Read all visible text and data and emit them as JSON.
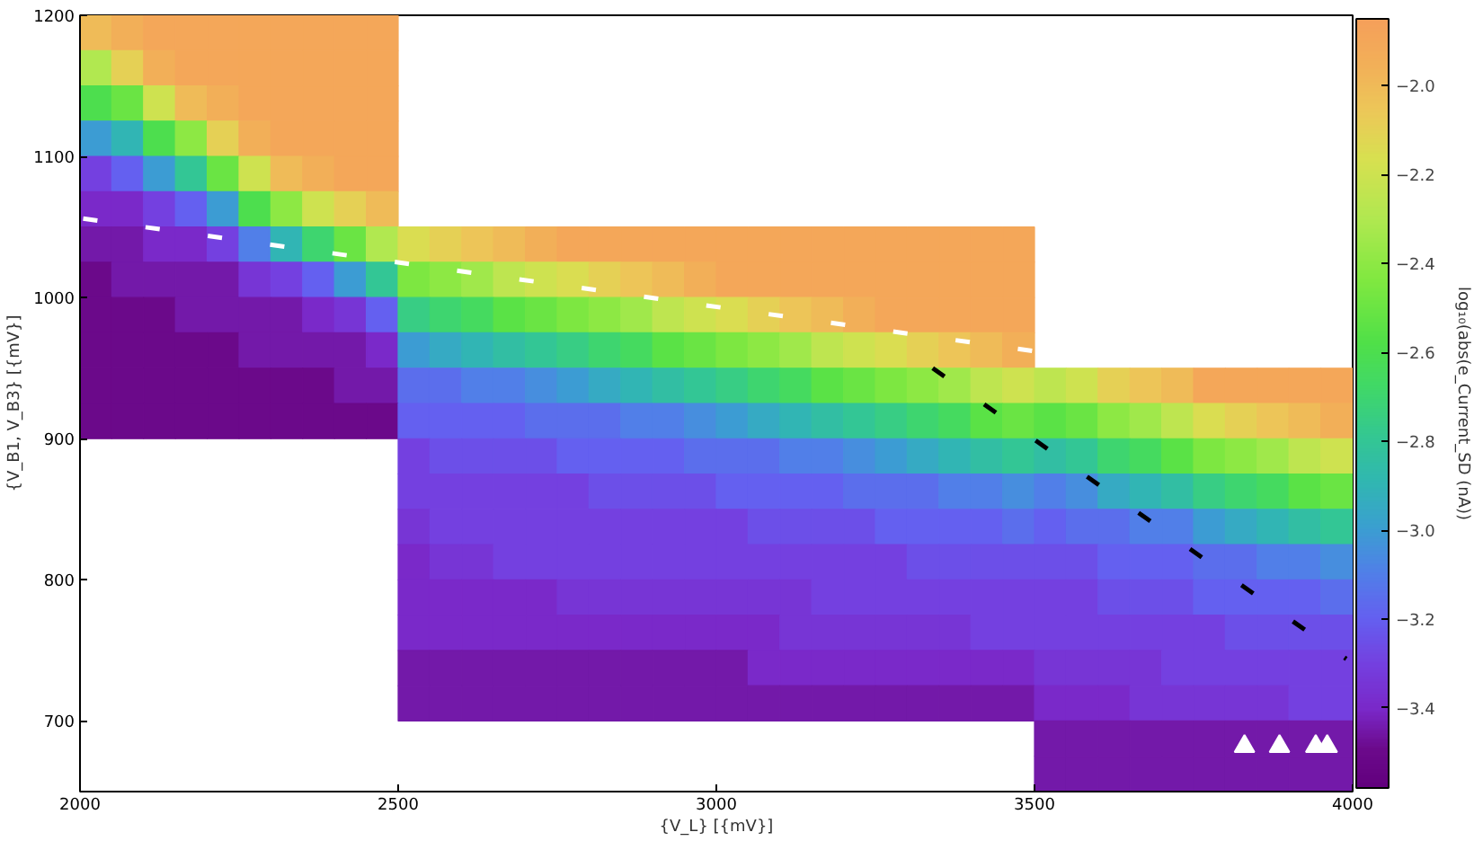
{
  "chart_data": {
    "type": "heatmap",
    "xlabel": "{V_L} [{mV}]",
    "ylabel": "{V_B1, V_B3} [{mV}]",
    "clabel": "log₁₀(abs(e_Current_SD (nA))",
    "xlim": [
      2000,
      4000
    ],
    "ylim": [
      650,
      1200
    ],
    "xticks": [
      2000,
      2500,
      3000,
      3500,
      4000
    ],
    "yticks": [
      700,
      800,
      900,
      1000,
      1100,
      1200
    ],
    "clim": [
      -3.58,
      -1.85
    ],
    "cticks": [
      {
        "value": -3.4,
        "label": "−3.4"
      },
      {
        "value": -3.2,
        "label": "−3.2"
      },
      {
        "value": -3.0,
        "label": "−3.0"
      },
      {
        "value": -2.8,
        "label": "−2.8"
      },
      {
        "value": -2.6,
        "label": "−2.6"
      },
      {
        "value": -2.4,
        "label": "−2.4"
      },
      {
        "value": -2.2,
        "label": "−2.2"
      },
      {
        "value": -2.0,
        "label": "−2.0"
      }
    ],
    "cells": [
      [
        -2.0,
        -1.95,
        -1.9,
        -1.9,
        -1.9,
        -1.9,
        -1.9,
        -1.9,
        -1.9,
        -1.9,
        null,
        null,
        null,
        null,
        null,
        null,
        null,
        null,
        null,
        null,
        null,
        null,
        null,
        null,
        null,
        null,
        null,
        null,
        null,
        null,
        null,
        null,
        null,
        null,
        null,
        null,
        null,
        null,
        null,
        null
      ],
      [
        -2.3,
        -2.1,
        -1.95,
        -1.9,
        -1.9,
        -1.9,
        -1.9,
        -1.9,
        -1.9,
        -1.9,
        null,
        null,
        null,
        null,
        null,
        null,
        null,
        null,
        null,
        null,
        null,
        null,
        null,
        null,
        null,
        null,
        null,
        null,
        null,
        null,
        null,
        null,
        null,
        null,
        null,
        null,
        null,
        null,
        null,
        null
      ],
      [
        -2.6,
        -2.5,
        -2.2,
        -2.0,
        -1.95,
        -1.9,
        -1.9,
        -1.9,
        -1.9,
        -1.9,
        null,
        null,
        null,
        null,
        null,
        null,
        null,
        null,
        null,
        null,
        null,
        null,
        null,
        null,
        null,
        null,
        null,
        null,
        null,
        null,
        null,
        null,
        null,
        null,
        null,
        null,
        null,
        null,
        null,
        null
      ],
      [
        -3.0,
        -2.9,
        -2.6,
        -2.4,
        -2.1,
        -1.95,
        -1.9,
        -1.9,
        -1.9,
        -1.9,
        null,
        null,
        null,
        null,
        null,
        null,
        null,
        null,
        null,
        null,
        null,
        null,
        null,
        null,
        null,
        null,
        null,
        null,
        null,
        null,
        null,
        null,
        null,
        null,
        null,
        null,
        null,
        null,
        null,
        null
      ],
      [
        -3.3,
        -3.2,
        -3.0,
        -2.8,
        -2.5,
        -2.2,
        -2.0,
        -1.95,
        -1.9,
        -1.9,
        null,
        null,
        null,
        null,
        null,
        null,
        null,
        null,
        null,
        null,
        null,
        null,
        null,
        null,
        null,
        null,
        null,
        null,
        null,
        null,
        null,
        null,
        null,
        null,
        null,
        null,
        null,
        null,
        null,
        null
      ],
      [
        -3.4,
        -3.4,
        -3.3,
        -3.2,
        -3.0,
        -2.6,
        -2.4,
        -2.2,
        -2.1,
        -2.0,
        null,
        null,
        null,
        null,
        null,
        null,
        null,
        null,
        null,
        null,
        null,
        null,
        null,
        null,
        null,
        null,
        null,
        null,
        null,
        null,
        null,
        null,
        null,
        null,
        null,
        null,
        null,
        null,
        null,
        null
      ],
      [
        -3.45,
        -3.45,
        -3.4,
        -3.4,
        -3.3,
        -3.1,
        -2.9,
        -2.7,
        -2.5,
        -2.3,
        -2.15,
        -2.1,
        -2.05,
        -2.0,
        -1.95,
        -1.9,
        -1.9,
        -1.9,
        -1.9,
        -1.9,
        -1.9,
        -1.9,
        -1.9,
        -1.9,
        -1.9,
        -1.9,
        -1.9,
        -1.9,
        -1.9,
        -1.9,
        null,
        null,
        null,
        null,
        null,
        null,
        null,
        null,
        null,
        null
      ],
      [
        -3.5,
        -3.45,
        -3.45,
        -3.45,
        -3.45,
        -3.35,
        -3.3,
        -3.2,
        -3.0,
        -2.8,
        -2.45,
        -2.4,
        -2.35,
        -2.25,
        -2.2,
        -2.15,
        -2.1,
        -2.05,
        -2.0,
        -1.95,
        -1.9,
        -1.9,
        -1.9,
        -1.9,
        -1.9,
        -1.9,
        -1.9,
        -1.9,
        -1.9,
        -1.9,
        null,
        null,
        null,
        null,
        null,
        null,
        null,
        null,
        null,
        null
      ],
      [
        -3.5,
        -3.5,
        -3.5,
        -3.45,
        -3.45,
        -3.45,
        -3.45,
        -3.4,
        -3.35,
        -3.2,
        -2.75,
        -2.7,
        -2.65,
        -2.55,
        -2.5,
        -2.45,
        -2.4,
        -2.35,
        -2.25,
        -2.2,
        -2.15,
        -2.1,
        -2.05,
        -2.0,
        -1.95,
        -1.9,
        -1.9,
        -1.9,
        -1.9,
        -1.9,
        null,
        null,
        null,
        null,
        null,
        null,
        null,
        null,
        null,
        null
      ],
      [
        -3.5,
        -3.5,
        -3.5,
        -3.5,
        -3.5,
        -3.45,
        -3.45,
        -3.45,
        -3.45,
        -3.4,
        -3.0,
        -2.95,
        -2.9,
        -2.85,
        -2.8,
        -2.75,
        -2.7,
        -2.65,
        -2.55,
        -2.5,
        -2.45,
        -2.4,
        -2.35,
        -2.25,
        -2.2,
        -2.15,
        -2.1,
        -2.05,
        -2.0,
        -1.95,
        null,
        null,
        null,
        null,
        null,
        null,
        null,
        null,
        null,
        null
      ],
      [
        -3.5,
        -3.5,
        -3.5,
        -3.5,
        -3.5,
        -3.5,
        -3.5,
        -3.5,
        -3.45,
        -3.45,
        -3.15,
        -3.15,
        -3.1,
        -3.1,
        -3.05,
        -3.0,
        -2.95,
        -2.9,
        -2.85,
        -2.8,
        -2.75,
        -2.7,
        -2.65,
        -2.55,
        -2.5,
        -2.45,
        -2.4,
        -2.35,
        -2.25,
        -2.2,
        -2.25,
        -2.2,
        -2.1,
        -2.05,
        -2.0,
        -1.9,
        -1.9,
        -1.9,
        -1.9,
        -1.9
      ],
      [
        -3.5,
        -3.5,
        -3.5,
        -3.5,
        -3.5,
        -3.5,
        -3.5,
        -3.5,
        -3.5,
        -3.5,
        -3.2,
        -3.2,
        -3.2,
        -3.2,
        -3.15,
        -3.15,
        -3.15,
        -3.1,
        -3.1,
        -3.05,
        -3.0,
        -2.95,
        -2.9,
        -2.85,
        -2.8,
        -2.75,
        -2.7,
        -2.65,
        -2.55,
        -2.5,
        -2.55,
        -2.5,
        -2.4,
        -2.35,
        -2.25,
        -2.15,
        -2.1,
        -2.05,
        -2.0,
        -1.95
      ],
      [
        null,
        null,
        null,
        null,
        null,
        null,
        null,
        null,
        null,
        null,
        -3.3,
        -3.25,
        -3.25,
        -3.25,
        -3.25,
        -3.2,
        -3.2,
        -3.2,
        -3.2,
        -3.15,
        -3.15,
        -3.15,
        -3.1,
        -3.1,
        -3.05,
        -3.0,
        -2.95,
        -2.9,
        -2.85,
        -2.8,
        -2.85,
        -2.8,
        -2.7,
        -2.65,
        -2.55,
        -2.45,
        -2.4,
        -2.35,
        -2.25,
        -2.2
      ],
      [
        null,
        null,
        null,
        null,
        null,
        null,
        null,
        null,
        null,
        null,
        -3.3,
        -3.3,
        -3.3,
        -3.3,
        -3.3,
        -3.3,
        -3.25,
        -3.25,
        -3.25,
        -3.25,
        -3.2,
        -3.2,
        -3.2,
        -3.2,
        -3.15,
        -3.15,
        -3.15,
        -3.1,
        -3.1,
        -3.05,
        -3.1,
        -3.05,
        -2.95,
        -2.9,
        -2.85,
        -2.75,
        -2.7,
        -2.65,
        -2.55,
        -2.5
      ],
      [
        null,
        null,
        null,
        null,
        null,
        null,
        null,
        null,
        null,
        null,
        -3.35,
        -3.3,
        -3.3,
        -3.3,
        -3.3,
        -3.3,
        -3.3,
        -3.3,
        -3.3,
        -3.3,
        -3.3,
        -3.25,
        -3.25,
        -3.25,
        -3.25,
        -3.2,
        -3.2,
        -3.2,
        -3.2,
        -3.15,
        -3.2,
        -3.15,
        -3.15,
        -3.1,
        -3.1,
        -3.0,
        -2.95,
        -2.9,
        -2.85,
        -2.8
      ],
      [
        null,
        null,
        null,
        null,
        null,
        null,
        null,
        null,
        null,
        null,
        -3.4,
        -3.35,
        -3.35,
        -3.3,
        -3.3,
        -3.3,
        -3.3,
        -3.3,
        -3.3,
        -3.3,
        -3.3,
        -3.3,
        -3.3,
        -3.3,
        -3.3,
        -3.3,
        -3.25,
        -3.25,
        -3.25,
        -3.25,
        -3.25,
        -3.25,
        -3.2,
        -3.2,
        -3.2,
        -3.15,
        -3.15,
        -3.1,
        -3.1,
        -3.05
      ],
      [
        null,
        null,
        null,
        null,
        null,
        null,
        null,
        null,
        null,
        null,
        -3.4,
        -3.4,
        -3.4,
        -3.4,
        -3.4,
        -3.35,
        -3.35,
        -3.35,
        -3.35,
        -3.35,
        -3.35,
        -3.35,
        -3.35,
        -3.3,
        -3.3,
        -3.3,
        -3.3,
        -3.3,
        -3.3,
        -3.3,
        -3.3,
        -3.3,
        -3.25,
        -3.25,
        -3.25,
        -3.2,
        -3.2,
        -3.2,
        -3.2,
        -3.15
      ],
      [
        null,
        null,
        null,
        null,
        null,
        null,
        null,
        null,
        null,
        null,
        -3.4,
        -3.4,
        -3.4,
        -3.4,
        -3.4,
        -3.4,
        -3.4,
        -3.4,
        -3.4,
        -3.4,
        -3.4,
        -3.4,
        -3.35,
        -3.35,
        -3.35,
        -3.35,
        -3.35,
        -3.35,
        -3.3,
        -3.3,
        -3.3,
        -3.3,
        -3.3,
        -3.3,
        -3.3,
        -3.3,
        -3.25,
        -3.25,
        -3.25,
        -3.25
      ],
      [
        null,
        null,
        null,
        null,
        null,
        null,
        null,
        null,
        null,
        null,
        -3.45,
        -3.45,
        -3.45,
        -3.45,
        -3.45,
        -3.45,
        -3.45,
        -3.45,
        -3.45,
        -3.45,
        -3.45,
        -3.4,
        -3.4,
        -3.4,
        -3.4,
        -3.4,
        -3.4,
        -3.4,
        -3.4,
        -3.4,
        -3.35,
        -3.35,
        -3.35,
        -3.35,
        -3.3,
        -3.3,
        -3.3,
        -3.3,
        -3.3,
        -3.3
      ],
      [
        null,
        null,
        null,
        null,
        null,
        null,
        null,
        null,
        null,
        null,
        -3.45,
        -3.45,
        -3.45,
        -3.45,
        -3.45,
        -3.45,
        -3.45,
        -3.45,
        -3.45,
        -3.45,
        -3.45,
        -3.45,
        -3.45,
        -3.45,
        -3.45,
        -3.45,
        -3.45,
        -3.45,
        -3.45,
        -3.45,
        -3.4,
        -3.4,
        -3.4,
        -3.35,
        -3.35,
        -3.35,
        -3.35,
        -3.35,
        -3.3,
        -3.3
      ],
      [
        null,
        null,
        null,
        null,
        null,
        null,
        null,
        null,
        null,
        null,
        null,
        null,
        null,
        null,
        null,
        null,
        null,
        null,
        null,
        null,
        null,
        null,
        null,
        null,
        null,
        null,
        null,
        null,
        null,
        null,
        -3.45,
        -3.45,
        -3.45,
        -3.45,
        -3.45,
        -3.45,
        -3.45,
        -3.45,
        -3.45,
        -3.45
      ],
      [
        null,
        null,
        null,
        null,
        null,
        null,
        null,
        null,
        null,
        null,
        null,
        null,
        null,
        null,
        null,
        null,
        null,
        null,
        null,
        null,
        null,
        null,
        null,
        null,
        null,
        null,
        null,
        null,
        null,
        null,
        -3.45,
        -3.45,
        -3.45,
        -3.45,
        -3.45,
        -3.45,
        -3.45,
        -3.45,
        -3.45,
        -3.45
      ]
    ],
    "series": [
      {
        "type": "line",
        "color": "#ffffff",
        "line_style": "dashed",
        "x": [
          2005,
          3500
        ],
        "values": [
          1056,
          962
        ]
      },
      {
        "type": "line",
        "color": "#000000",
        "line_style": "dashed",
        "x": [
          3340,
          3990
        ],
        "values": [
          950,
          744
        ]
      },
      {
        "type": "scatter",
        "color": "#ffffff",
        "marker": "triangle",
        "x": [
          3830,
          3885,
          3942,
          3960
        ],
        "values": [
          682,
          682,
          682,
          682
        ]
      }
    ]
  }
}
